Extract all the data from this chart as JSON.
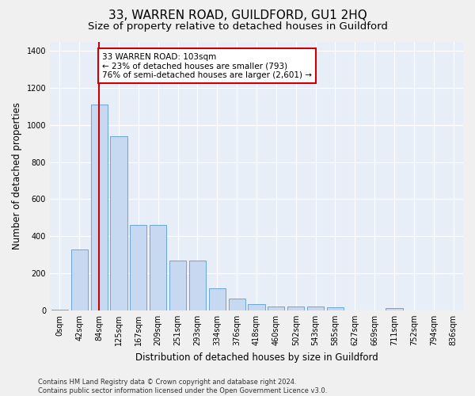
{
  "title": "33, WARREN ROAD, GUILDFORD, GU1 2HQ",
  "subtitle": "Size of property relative to detached houses in Guildford",
  "xlabel": "Distribution of detached houses by size in Guildford",
  "ylabel": "Number of detached properties",
  "bar_labels": [
    "0sqm",
    "42sqm",
    "84sqm",
    "125sqm",
    "167sqm",
    "209sqm",
    "251sqm",
    "293sqm",
    "334sqm",
    "376sqm",
    "418sqm",
    "460sqm",
    "502sqm",
    "543sqm",
    "585sqm",
    "627sqm",
    "669sqm",
    "711sqm",
    "752sqm",
    "794sqm",
    "836sqm"
  ],
  "bar_values": [
    5,
    330,
    1110,
    940,
    460,
    460,
    270,
    270,
    120,
    65,
    35,
    20,
    20,
    20,
    15,
    0,
    0,
    10,
    0,
    0,
    0
  ],
  "bar_color": "#c6d9f0",
  "bar_edgecolor": "#5b9bd5",
  "vline_x": 2,
  "vline_color": "#cc0000",
  "annotation_text": "33 WARREN ROAD: 103sqm\n← 23% of detached houses are smaller (793)\n76% of semi-detached houses are larger (2,601) →",
  "annotation_box_color": "#ffffff",
  "annotation_box_edgecolor": "#cc0000",
  "ylim": [
    0,
    1450
  ],
  "yticks": [
    0,
    200,
    400,
    600,
    800,
    1000,
    1200,
    1400
  ],
  "footer_line1": "Contains HM Land Registry data © Crown copyright and database right 2024.",
  "footer_line2": "Contains public sector information licensed under the Open Government Licence v3.0.",
  "bg_color": "#e8eef8",
  "fig_bg_color": "#f0f0f0",
  "grid_color": "#ffffff",
  "title_fontsize": 11,
  "subtitle_fontsize": 9.5,
  "label_fontsize": 8.5,
  "tick_fontsize": 7,
  "footer_fontsize": 6,
  "annotation_fontsize": 7.5
}
